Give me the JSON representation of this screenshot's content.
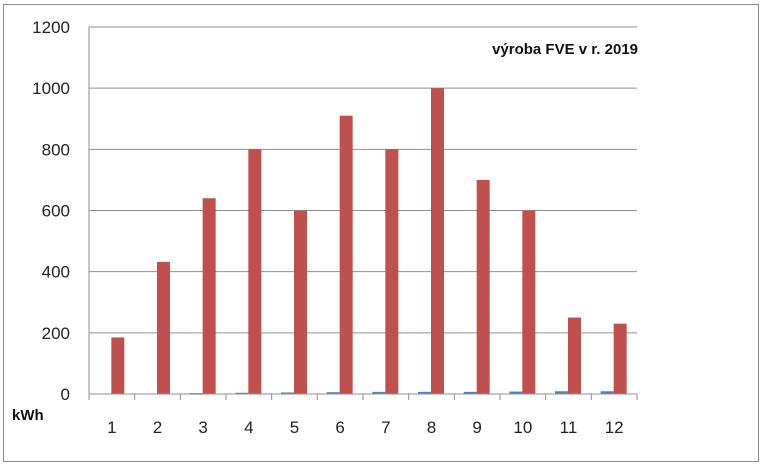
{
  "chart_data": {
    "type": "bar",
    "title": "výroba FVE v r. 2019",
    "ylabel": "kWh",
    "xlabel": "",
    "categories": [
      "1",
      "2",
      "3",
      "4",
      "5",
      "6",
      "7",
      "8",
      "9",
      "10",
      "11",
      "12"
    ],
    "ylim": [
      0,
      1200
    ],
    "yticks": [
      "0",
      "200",
      "400",
      "600",
      "800",
      "1000",
      "1200"
    ],
    "grid": true,
    "series": [
      {
        "values": [
          0,
          0,
          3,
          4,
          5,
          6,
          7,
          7,
          7,
          8,
          9,
          9
        ],
        "color": "#4f81bd"
      },
      {
        "values": [
          185,
          432,
          640,
          800,
          600,
          910,
          800,
          1000,
          700,
          600,
          250,
          230
        ],
        "color": "#c0504d"
      }
    ]
  }
}
